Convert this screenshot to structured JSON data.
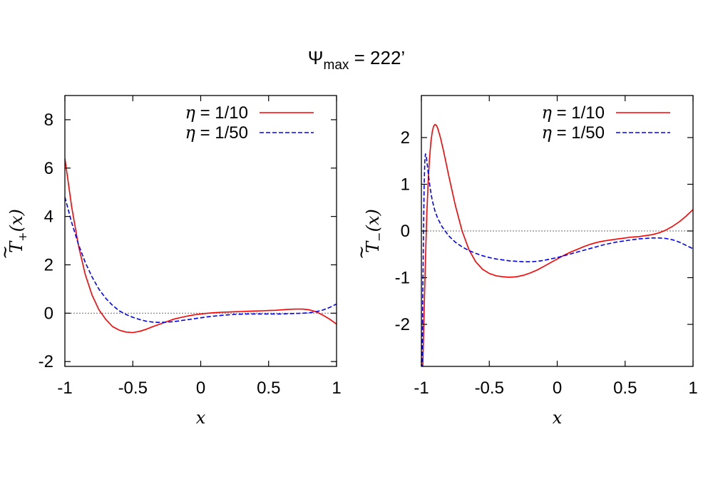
{
  "figure": {
    "title_main": "Ψ",
    "title_sub": "max",
    "title_rest": " = 222’"
  },
  "chart_data": [
    {
      "type": "line",
      "ylabel": {
        "base": "T",
        "sub": "+",
        "arg": "(x)"
      },
      "xlabel": "x",
      "xlim": [
        -1,
        1
      ],
      "ylim": [
        -2.2,
        9
      ],
      "xticks": [
        -1,
        -0.5,
        0,
        0.5,
        1
      ],
      "xtick_labels": [
        "-1",
        "-0.5",
        "0",
        "0.5",
        "1"
      ],
      "yticks": [
        -2,
        0,
        2,
        4,
        6,
        8
      ],
      "ytick_labels": [
        "-2",
        "0",
        "2",
        "4",
        "6",
        "8"
      ],
      "zero_line": true,
      "legend_position": "top-right",
      "series": [
        {
          "name": "η = 1/10",
          "legend_symbol": "η",
          "legend_value": " = 1/10",
          "color": "#ff0000",
          "dash": "solid",
          "x": [
            -1,
            -0.95,
            -0.9,
            -0.85,
            -0.8,
            -0.75,
            -0.7,
            -0.65,
            -0.6,
            -0.55,
            -0.5,
            -0.45,
            -0.4,
            -0.35,
            -0.3,
            -0.25,
            -0.2,
            -0.15,
            -0.1,
            -0.05,
            0,
            0.05,
            0.1,
            0.15,
            0.2,
            0.25,
            0.3,
            0.35,
            0.4,
            0.45,
            0.5,
            0.55,
            0.6,
            0.65,
            0.7,
            0.75,
            0.8,
            0.85,
            0.9,
            0.95,
            1
          ],
          "y": [
            6.4,
            4.4,
            2.8,
            1.6,
            0.75,
            0.15,
            -0.25,
            -0.55,
            -0.7,
            -0.78,
            -0.8,
            -0.75,
            -0.66,
            -0.55,
            -0.45,
            -0.35,
            -0.25,
            -0.18,
            -0.12,
            -0.07,
            -0.03,
            0.0,
            0.02,
            0.04,
            0.05,
            0.06,
            0.07,
            0.08,
            0.09,
            0.1,
            0.11,
            0.12,
            0.14,
            0.16,
            0.17,
            0.17,
            0.14,
            0.06,
            -0.08,
            -0.25,
            -0.45
          ]
        },
        {
          "name": "η = 1/50",
          "legend_symbol": "η",
          "legend_value": " = 1/50",
          "color": "#0000ff",
          "dash": "dashed",
          "x": [
            -1,
            -0.95,
            -0.9,
            -0.85,
            -0.8,
            -0.75,
            -0.7,
            -0.65,
            -0.6,
            -0.55,
            -0.5,
            -0.45,
            -0.4,
            -0.35,
            -0.3,
            -0.25,
            -0.2,
            -0.15,
            -0.1,
            -0.05,
            0,
            0.05,
            0.1,
            0.15,
            0.2,
            0.25,
            0.3,
            0.35,
            0.4,
            0.45,
            0.5,
            0.55,
            0.6,
            0.65,
            0.7,
            0.75,
            0.8,
            0.85,
            0.9,
            0.95,
            1
          ],
          "y": [
            4.8,
            3.75,
            2.85,
            2.1,
            1.5,
            1.0,
            0.62,
            0.33,
            0.1,
            -0.05,
            -0.17,
            -0.26,
            -0.33,
            -0.37,
            -0.38,
            -0.37,
            -0.35,
            -0.31,
            -0.27,
            -0.23,
            -0.19,
            -0.15,
            -0.12,
            -0.09,
            -0.07,
            -0.05,
            -0.04,
            -0.03,
            -0.03,
            -0.03,
            -0.03,
            -0.03,
            -0.03,
            -0.02,
            -0.01,
            0.0,
            0.02,
            0.06,
            0.13,
            0.24,
            0.38
          ]
        }
      ]
    },
    {
      "type": "line",
      "ylabel": {
        "base": "T",
        "sub": "−",
        "arg": "(x)"
      },
      "xlabel": "x",
      "xlim": [
        -1,
        1
      ],
      "ylim": [
        -2.9,
        2.9
      ],
      "xticks": [
        -1,
        -0.5,
        0,
        0.5,
        1
      ],
      "xtick_labels": [
        "-1",
        "-0.5",
        "0",
        "0.5",
        "1"
      ],
      "yticks": [
        -2,
        -1,
        0,
        1,
        2
      ],
      "ytick_labels": [
        "-2",
        "-1",
        "0",
        "1",
        "2"
      ],
      "zero_line": true,
      "legend_position": "top-right",
      "series": [
        {
          "name": "η = 1/10",
          "legend_symbol": "η",
          "legend_value": " = 1/10",
          "color": "#ff0000",
          "dash": "solid",
          "x": [
            -0.99,
            -0.98,
            -0.97,
            -0.96,
            -0.95,
            -0.94,
            -0.93,
            -0.92,
            -0.91,
            -0.9,
            -0.89,
            -0.88,
            -0.86,
            -0.84,
            -0.82,
            -0.8,
            -0.75,
            -0.7,
            -0.65,
            -0.6,
            -0.55,
            -0.5,
            -0.45,
            -0.4,
            -0.35,
            -0.3,
            -0.25,
            -0.2,
            -0.15,
            -0.1,
            -0.05,
            0,
            0.05,
            0.1,
            0.15,
            0.2,
            0.25,
            0.3,
            0.35,
            0.4,
            0.45,
            0.5,
            0.55,
            0.6,
            0.65,
            0.7,
            0.75,
            0.8,
            0.85,
            0.9,
            0.95,
            1
          ],
          "y": [
            -2.95,
            -1.75,
            -0.6,
            0.35,
            1.05,
            1.55,
            1.9,
            2.12,
            2.24,
            2.28,
            2.26,
            2.2,
            2.0,
            1.75,
            1.48,
            1.2,
            0.55,
            0.0,
            -0.4,
            -0.66,
            -0.82,
            -0.91,
            -0.96,
            -0.98,
            -0.99,
            -0.98,
            -0.95,
            -0.9,
            -0.84,
            -0.76,
            -0.68,
            -0.6,
            -0.52,
            -0.45,
            -0.39,
            -0.33,
            -0.28,
            -0.24,
            -0.21,
            -0.19,
            -0.17,
            -0.15,
            -0.13,
            -0.12,
            -0.1,
            -0.08,
            -0.04,
            0.02,
            0.1,
            0.2,
            0.32,
            0.46
          ]
        },
        {
          "name": "η = 1/50",
          "legend_symbol": "η",
          "legend_value": " = 1/50",
          "color": "#0000ff",
          "dash": "dashed",
          "x": [
            -0.995,
            -0.99,
            -0.985,
            -0.98,
            -0.975,
            -0.97,
            -0.965,
            -0.96,
            -0.955,
            -0.95,
            -0.94,
            -0.93,
            -0.92,
            -0.9,
            -0.88,
            -0.85,
            -0.8,
            -0.75,
            -0.7,
            -0.65,
            -0.6,
            -0.55,
            -0.5,
            -0.45,
            -0.4,
            -0.35,
            -0.3,
            -0.25,
            -0.2,
            -0.15,
            -0.1,
            -0.05,
            0,
            0.05,
            0.1,
            0.15,
            0.2,
            0.25,
            0.3,
            0.35,
            0.4,
            0.45,
            0.5,
            0.55,
            0.6,
            0.65,
            0.7,
            0.75,
            0.8,
            0.85,
            0.9,
            0.95,
            1
          ],
          "y": [
            -2.95,
            -1.5,
            -0.1,
            0.9,
            1.5,
            1.65,
            1.62,
            1.5,
            1.38,
            1.25,
            1.02,
            0.82,
            0.66,
            0.43,
            0.27,
            0.1,
            -0.1,
            -0.24,
            -0.34,
            -0.42,
            -0.48,
            -0.53,
            -0.57,
            -0.6,
            -0.62,
            -0.64,
            -0.65,
            -0.66,
            -0.66,
            -0.65,
            -0.63,
            -0.6,
            -0.57,
            -0.53,
            -0.49,
            -0.45,
            -0.41,
            -0.37,
            -0.33,
            -0.29,
            -0.26,
            -0.23,
            -0.21,
            -0.19,
            -0.17,
            -0.16,
            -0.15,
            -0.15,
            -0.16,
            -0.19,
            -0.24,
            -0.31,
            -0.38
          ]
        }
      ]
    }
  ]
}
